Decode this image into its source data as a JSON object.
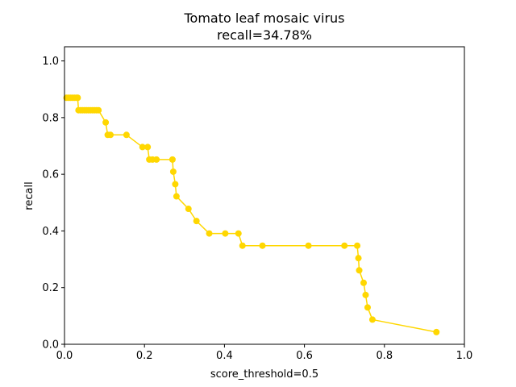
{
  "chart_data": {
    "type": "line",
    "title": "Tomato leaf mosaic virus",
    "subtitle": "recall=34.78%",
    "xlabel": "score_threshold=0.5",
    "ylabel": "recall",
    "xlim": [
      0.0,
      1.0
    ],
    "ylim": [
      0.0,
      1.05
    ],
    "xticks": [
      0.0,
      0.2,
      0.4,
      0.6,
      0.8,
      1.0
    ],
    "xtick_labels": [
      "0.0",
      "0.2",
      "0.4",
      "0.6",
      "0.8",
      "1.0"
    ],
    "yticks": [
      0.0,
      0.2,
      0.4,
      0.6,
      0.8,
      1.0
    ],
    "ytick_labels": [
      "0.0",
      "0.2",
      "0.4",
      "0.6",
      "0.8",
      "1.0"
    ],
    "grid": false,
    "color": "#FFD700",
    "series": [
      {
        "x": [
          0.005,
          0.01,
          0.015,
          0.02,
          0.025,
          0.03,
          0.033,
          0.035,
          0.04,
          0.045,
          0.05,
          0.055,
          0.06,
          0.065,
          0.07,
          0.075,
          0.08,
          0.085,
          0.103,
          0.108,
          0.115,
          0.155,
          0.195,
          0.208,
          0.212,
          0.22,
          0.23,
          0.27,
          0.272,
          0.277,
          0.28,
          0.31,
          0.33,
          0.362,
          0.402,
          0.435,
          0.445,
          0.495,
          0.61,
          0.7,
          0.732,
          0.735,
          0.737,
          0.748,
          0.753,
          0.758,
          0.77,
          0.93
        ],
        "y": [
          0.87,
          0.87,
          0.87,
          0.87,
          0.87,
          0.87,
          0.87,
          0.826,
          0.826,
          0.826,
          0.826,
          0.826,
          0.826,
          0.826,
          0.826,
          0.826,
          0.826,
          0.826,
          0.783,
          0.739,
          0.739,
          0.739,
          0.696,
          0.696,
          0.652,
          0.652,
          0.652,
          0.652,
          0.609,
          0.565,
          0.522,
          0.478,
          0.435,
          0.391,
          0.391,
          0.391,
          0.348,
          0.348,
          0.348,
          0.348,
          0.348,
          0.304,
          0.261,
          0.217,
          0.174,
          0.13,
          0.087,
          0.043
        ]
      }
    ]
  }
}
